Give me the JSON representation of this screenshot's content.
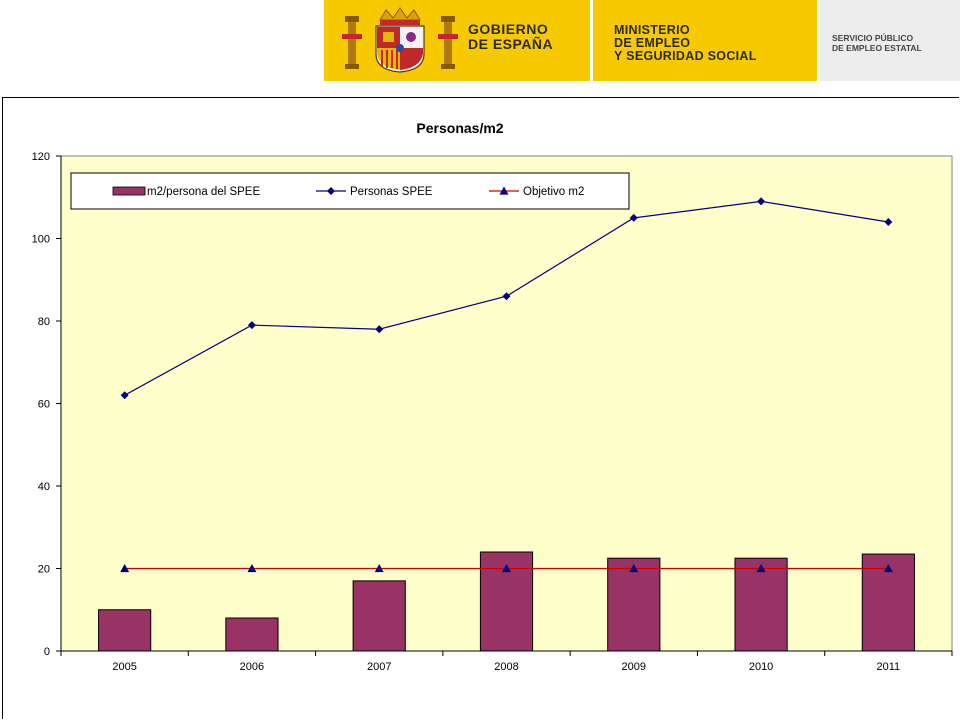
{
  "header": {
    "gobierno": [
      "GOBIERNO",
      "DE ESPAÑA"
    ],
    "ministerio": [
      "MINISTERIO",
      "DE EMPLEO",
      "Y SEGURIDAD SOCIAL"
    ],
    "sepe": [
      "SERVICIO PÚBLICO",
      "DE EMPLEO ESTATAL"
    ],
    "colors": {
      "banner": "#f6c900",
      "sepe_box": "#ededed"
    }
  },
  "chart_data": {
    "type": "bar",
    "title": "Personas/m2",
    "categories": [
      "2005",
      "2006",
      "2007",
      "2008",
      "2009",
      "2010",
      "2011"
    ],
    "series": [
      {
        "name": "m2/persona del SPEE",
        "kind": "bar",
        "color": "#993366",
        "values": [
          10,
          8,
          17,
          24,
          22.5,
          22.5,
          23.5
        ]
      },
      {
        "name": "Personas SPEE",
        "kind": "line",
        "marker": "diamond",
        "color": "#000080",
        "values": [
          62,
          79,
          78,
          86,
          105,
          109,
          104
        ]
      },
      {
        "name": "Objetivo m2",
        "kind": "line",
        "marker": "triangle",
        "color": "#cc0000",
        "marker_color": "#000080",
        "values": [
          20,
          20,
          20,
          20,
          20,
          20,
          20
        ]
      }
    ],
    "ylim": [
      0,
      120
    ],
    "yticks": [
      "0",
      "20",
      "40",
      "60",
      "80",
      "100",
      "120"
    ],
    "plot_background": "#ffffcc",
    "grid": false,
    "legend": "top-left"
  }
}
